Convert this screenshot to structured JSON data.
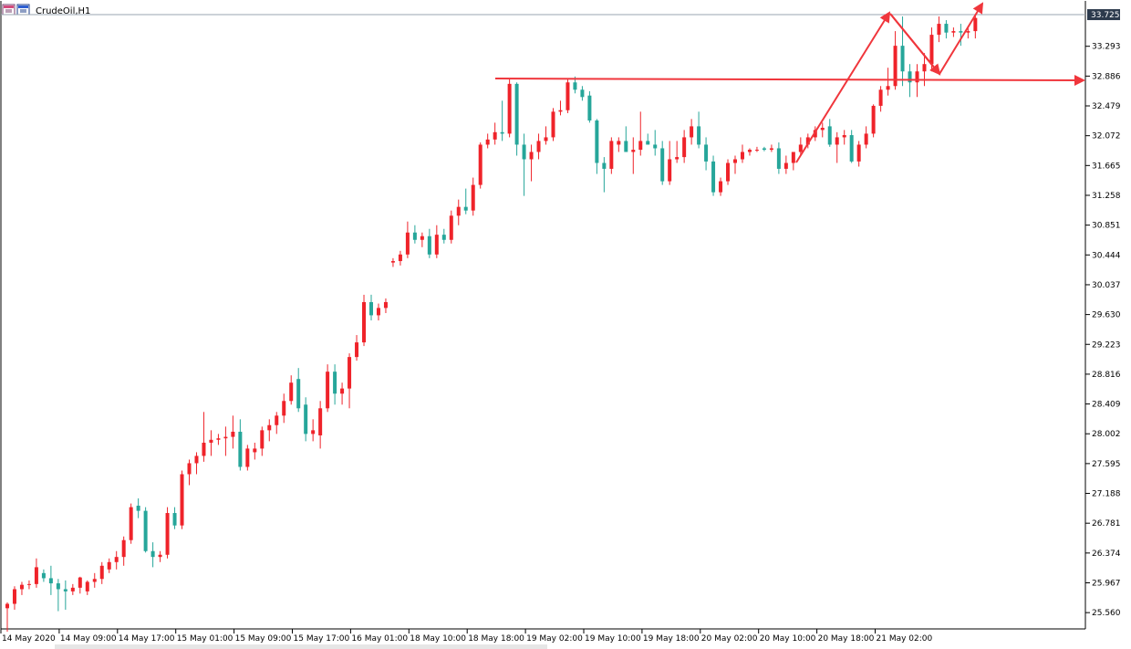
{
  "window": {
    "symbol_label": "CrudeOil,H1",
    "icon": "chart-window-icon"
  },
  "chart_data": {
    "type": "candlestick",
    "symbol": "CrudeOil",
    "timeframe": "H1",
    "ylim": [
      25.35,
      33.9
    ],
    "y_ticks": [
      "33.293",
      "32.886",
      "32.479",
      "32.072",
      "31.665",
      "31.258",
      "30.851",
      "30.444",
      "30.037",
      "29.630",
      "29.223",
      "28.816",
      "28.409",
      "28.002",
      "27.595",
      "27.188",
      "26.781",
      "26.374",
      "25.967",
      "25.560"
    ],
    "current_price": "33.725",
    "x_labels": [
      "14 May 2020",
      "14 May 09:00",
      "14 May 17:00",
      "15 May 01:00",
      "15 May 09:00",
      "15 May 17:00",
      "16 May 01:00",
      "18 May 10:00",
      "18 May 18:00",
      "19 May 02:00",
      "19 May 10:00",
      "19 May 18:00",
      "20 May 02:00",
      "20 May 10:00",
      "20 May 18:00",
      "21 May 02:00"
    ],
    "candles": [
      [
        25.62,
        25.7,
        25.3,
        25.68
      ],
      [
        25.68,
        25.92,
        25.6,
        25.88
      ],
      [
        25.88,
        25.98,
        25.8,
        25.94
      ],
      [
        25.94,
        26.0,
        25.88,
        25.95
      ],
      [
        25.95,
        26.3,
        25.9,
        26.18
      ],
      [
        26.1,
        26.15,
        25.98,
        26.03
      ],
      [
        26.03,
        26.2,
        25.8,
        25.96
      ],
      [
        25.96,
        26.02,
        25.58,
        25.88
      ],
      [
        25.88,
        26.0,
        25.6,
        25.85
      ],
      [
        25.85,
        25.95,
        25.8,
        25.9
      ],
      [
        25.9,
        26.05,
        25.82,
        26.04
      ],
      [
        25.85,
        26.0,
        25.8,
        25.98
      ],
      [
        25.98,
        26.1,
        25.9,
        26.02
      ],
      [
        26.02,
        26.25,
        25.95,
        26.2
      ],
      [
        26.15,
        26.3,
        26.1,
        26.25
      ],
      [
        26.25,
        26.4,
        26.15,
        26.32
      ],
      [
        26.32,
        26.6,
        26.2,
        26.55
      ],
      [
        26.55,
        27.05,
        26.5,
        27.0
      ],
      [
        27.02,
        27.12,
        26.85,
        26.95
      ],
      [
        26.95,
        27.0,
        26.38,
        26.4
      ],
      [
        26.4,
        26.52,
        26.18,
        26.32
      ],
      [
        26.32,
        26.4,
        26.25,
        26.35
      ],
      [
        26.35,
        27.0,
        26.3,
        26.92
      ],
      [
        26.92,
        27.0,
        26.7,
        26.75
      ],
      [
        26.75,
        27.5,
        26.7,
        27.45
      ],
      [
        27.45,
        27.65,
        27.3,
        27.6
      ],
      [
        27.6,
        27.75,
        27.45,
        27.7
      ],
      [
        27.7,
        28.3,
        27.62,
        27.88
      ],
      [
        27.88,
        28.05,
        27.7,
        27.92
      ],
      [
        27.92,
        28.0,
        27.85,
        27.94
      ],
      [
        27.94,
        28.1,
        27.7,
        27.96
      ],
      [
        27.96,
        28.25,
        27.8,
        28.03
      ],
      [
        28.03,
        28.2,
        27.5,
        27.55
      ],
      [
        27.55,
        27.85,
        27.5,
        27.8
      ],
      [
        27.75,
        27.88,
        27.65,
        27.8
      ],
      [
        27.8,
        28.1,
        27.7,
        28.05
      ],
      [
        28.05,
        28.2,
        27.9,
        28.12
      ],
      [
        28.12,
        28.3,
        28.0,
        28.25
      ],
      [
        28.25,
        28.55,
        28.15,
        28.45
      ],
      [
        28.45,
        28.8,
        28.4,
        28.7
      ],
      [
        28.75,
        28.9,
        28.3,
        28.35
      ],
      [
        28.4,
        28.5,
        27.9,
        28.0
      ],
      [
        28.0,
        28.2,
        27.9,
        28.05
      ],
      [
        27.98,
        28.45,
        27.8,
        28.35
      ],
      [
        28.35,
        28.95,
        28.3,
        28.85
      ],
      [
        28.85,
        28.95,
        28.4,
        28.55
      ],
      [
        28.55,
        28.7,
        28.4,
        28.62
      ],
      [
        28.62,
        29.1,
        28.35,
        29.05
      ],
      [
        29.05,
        29.35,
        29.0,
        29.25
      ],
      [
        29.25,
        29.9,
        29.2,
        29.8
      ],
      [
        29.8,
        29.9,
        29.55,
        29.62
      ],
      [
        29.62,
        29.78,
        29.55,
        29.72
      ],
      [
        29.72,
        29.85,
        29.65,
        29.8
      ],
      [
        30.34,
        30.4,
        30.28,
        30.36
      ],
      [
        30.36,
        30.5,
        30.3,
        30.45
      ],
      [
        30.45,
        30.9,
        30.4,
        30.75
      ],
      [
        30.75,
        30.85,
        30.6,
        30.65
      ],
      [
        30.65,
        30.75,
        30.55,
        30.7
      ],
      [
        30.7,
        30.8,
        30.4,
        30.45
      ],
      [
        30.45,
        30.85,
        30.4,
        30.72
      ],
      [
        30.72,
        30.8,
        30.6,
        30.65
      ],
      [
        30.65,
        31.05,
        30.6,
        30.98
      ],
      [
        30.98,
        31.2,
        30.85,
        31.1
      ],
      [
        31.1,
        31.35,
        31.0,
        31.05
      ],
      [
        31.05,
        31.5,
        30.98,
        31.4
      ],
      [
        31.4,
        31.98,
        31.35,
        31.95
      ],
      [
        31.95,
        32.1,
        31.9,
        32.02
      ],
      [
        32.02,
        32.25,
        31.95,
        32.12
      ],
      [
        32.12,
        32.55,
        32.0,
        32.1
      ],
      [
        32.1,
        32.85,
        32.05,
        32.78
      ],
      [
        32.78,
        32.8,
        31.8,
        31.95
      ],
      [
        31.95,
        32.1,
        31.25,
        31.75
      ],
      [
        31.75,
        31.95,
        31.45,
        31.85
      ],
      [
        31.85,
        32.1,
        31.75,
        32.0
      ],
      [
        32.0,
        32.2,
        31.95,
        32.05
      ],
      [
        32.05,
        32.45,
        32.0,
        32.4
      ],
      [
        32.4,
        32.55,
        32.35,
        32.42
      ],
      [
        32.42,
        32.85,
        32.38,
        32.8
      ],
      [
        32.8,
        32.88,
        32.65,
        32.7
      ],
      [
        32.7,
        32.75,
        32.55,
        32.6
      ],
      [
        32.62,
        32.68,
        32.25,
        32.28
      ],
      [
        32.28,
        32.3,
        31.55,
        31.7
      ],
      [
        31.7,
        31.78,
        31.3,
        31.62
      ],
      [
        31.62,
        32.05,
        31.55,
        32.0
      ],
      [
        31.95,
        32.05,
        31.85,
        32.0
      ],
      [
        32.0,
        32.2,
        31.85,
        31.85
      ],
      [
        31.85,
        32.05,
        31.55,
        31.88
      ],
      [
        31.88,
        32.4,
        31.8,
        32.0
      ],
      [
        32.0,
        32.1,
        31.95,
        31.95
      ],
      [
        31.95,
        32.15,
        31.8,
        31.9
      ],
      [
        31.9,
        32.0,
        31.4,
        31.45
      ],
      [
        31.45,
        32.0,
        31.4,
        31.75
      ],
      [
        31.75,
        32.0,
        31.7,
        31.78
      ],
      [
        31.78,
        32.15,
        31.7,
        32.05
      ],
      [
        32.05,
        32.3,
        31.95,
        32.2
      ],
      [
        32.2,
        32.4,
        31.9,
        31.95
      ],
      [
        31.95,
        32.05,
        31.6,
        31.72
      ],
      [
        31.72,
        31.8,
        31.25,
        31.3
      ],
      [
        31.3,
        31.5,
        31.25,
        31.45
      ],
      [
        31.45,
        31.75,
        31.4,
        31.7
      ],
      [
        31.7,
        31.8,
        31.55,
        31.75
      ],
      [
        31.75,
        31.95,
        31.7,
        31.85
      ],
      [
        31.85,
        31.9,
        31.8,
        31.88
      ],
      [
        31.88,
        31.92,
        31.85,
        31.88
      ],
      [
        31.9,
        31.92,
        31.86,
        31.88
      ],
      [
        31.88,
        31.95,
        31.85,
        31.9
      ],
      [
        31.9,
        31.98,
        31.55,
        31.62
      ],
      [
        31.62,
        31.8,
        31.55,
        31.7
      ],
      [
        31.7,
        31.85,
        31.6,
        31.85
      ],
      [
        31.85,
        32.05,
        31.8,
        31.95
      ],
      [
        31.95,
        32.1,
        31.9,
        32.05
      ],
      [
        32.05,
        32.2,
        32.0,
        32.15
      ],
      [
        32.15,
        32.25,
        32.05,
        32.18
      ],
      [
        32.2,
        32.3,
        31.92,
        31.95
      ],
      [
        31.95,
        32.12,
        31.7,
        32.05
      ],
      [
        32.05,
        32.15,
        31.95,
        32.08
      ],
      [
        32.08,
        32.15,
        31.7,
        31.72
      ],
      [
        31.72,
        32.0,
        31.65,
        31.95
      ],
      [
        31.95,
        32.2,
        31.9,
        32.1
      ],
      [
        32.1,
        32.5,
        32.05,
        32.48
      ],
      [
        32.48,
        32.75,
        32.4,
        32.7
      ],
      [
        32.7,
        33.0,
        32.62,
        32.75
      ],
      [
        32.75,
        33.5,
        32.7,
        33.3
      ],
      [
        33.3,
        33.7,
        32.75,
        32.95
      ],
      [
        32.95,
        33.05,
        32.6,
        32.8
      ],
      [
        32.8,
        33.05,
        32.6,
        32.95
      ],
      [
        32.95,
        33.2,
        32.75,
        33.05
      ],
      [
        33.05,
        33.55,
        32.95,
        33.45
      ],
      [
        33.45,
        33.7,
        33.35,
        33.6
      ],
      [
        33.6,
        33.65,
        33.4,
        33.48
      ],
      [
        33.48,
        33.55,
        33.42,
        33.5
      ],
      [
        33.5,
        33.6,
        33.3,
        33.48
      ],
      [
        33.48,
        33.55,
        33.4,
        33.5
      ],
      [
        33.5,
        33.72,
        33.4,
        33.68
      ]
    ],
    "colors": {
      "bull": "#ef232a",
      "bear": "#26a69a",
      "annotation": "#f0363c",
      "price_line": "#9aa6b2",
      "price_tag": "#2c3a4c"
    },
    "annotations": {
      "resistance_level": 32.84
    }
  }
}
